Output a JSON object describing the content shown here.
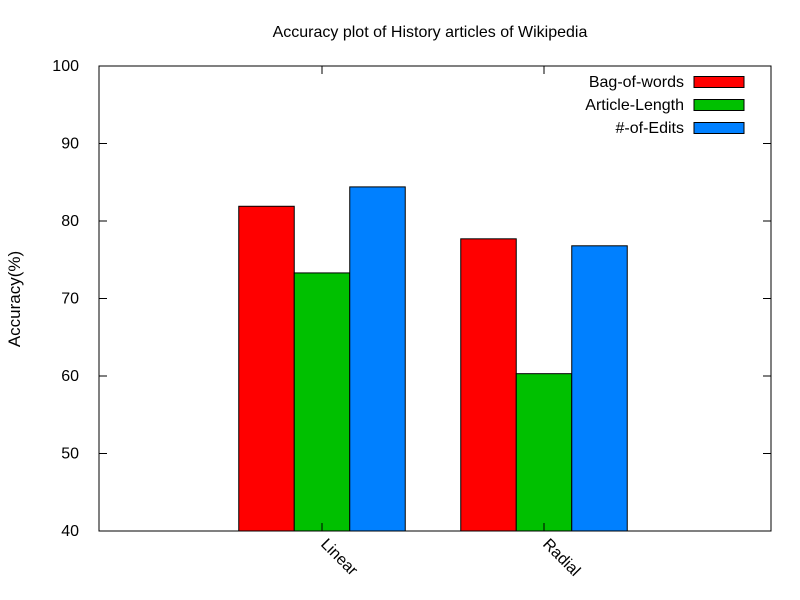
{
  "chart_data": {
    "type": "bar",
    "title": "Accuracy plot of History articles of Wikipedia",
    "xlabel": "",
    "ylabel": "Accuracy(%)",
    "ylim": [
      40,
      100
    ],
    "yticks": [
      40,
      50,
      60,
      70,
      80,
      90,
      100
    ],
    "categories": [
      "Linear",
      "Radial"
    ],
    "series": [
      {
        "name": "Bag-of-words",
        "color": "#ff0000",
        "values": [
          81.9,
          77.7
        ]
      },
      {
        "name": "Article-Length",
        "color": "#00c000",
        "values": [
          73.3,
          60.3
        ]
      },
      {
        "name": "#-of-Edits",
        "color": "#0080ff",
        "values": [
          84.4,
          76.8
        ]
      }
    ],
    "legend_position": "top-right",
    "grid": false
  }
}
